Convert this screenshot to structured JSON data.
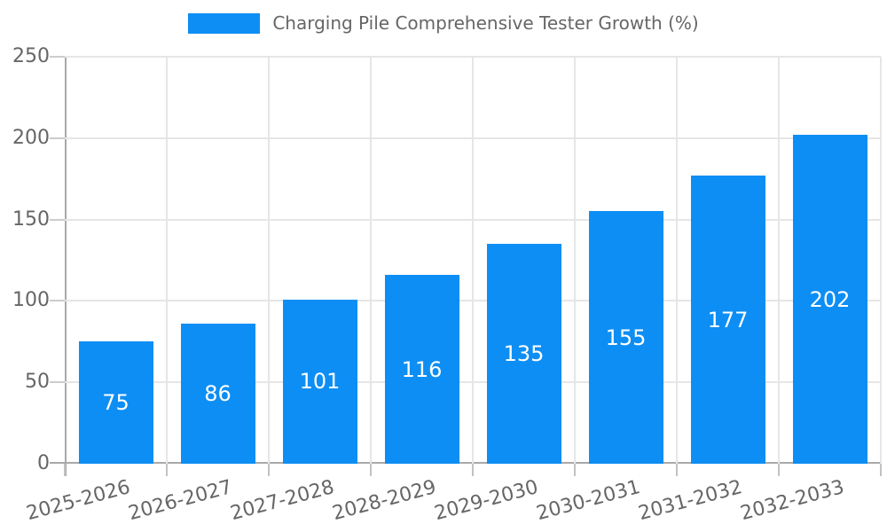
{
  "legend": {
    "label": "Charging Pile Comprehensive Tester Growth (%)"
  },
  "chart_data": {
    "type": "bar",
    "title": "",
    "categories": [
      "2025-2026",
      "2026-2027",
      "2027-2028",
      "2028-2029",
      "2029-2030",
      "2030-2031",
      "2031-2032",
      "2032-2033"
    ],
    "series": [
      {
        "name": "Charging Pile Comprehensive Tester Growth (%)",
        "values": [
          75,
          86,
          101,
          116,
          135,
          155,
          177,
          202
        ]
      }
    ],
    "xlabel": "",
    "ylabel": "",
    "ylim": [
      0,
      250
    ],
    "yticks": [
      0,
      50,
      100,
      150,
      200,
      250
    ],
    "grid": "both",
    "legend_position": "top-center",
    "value_label_position": "inside-center",
    "x_tick_rotation_deg": -15
  },
  "style": {
    "bar_color": "#0d8ef4",
    "axis_color": "#a9a9a9",
    "grid_color": "#e6e6e6",
    "tick_label_color": "#666666",
    "legend_text_color": "#666666",
    "value_label_color": "#ffffff",
    "background_color": "#ffffff"
  }
}
